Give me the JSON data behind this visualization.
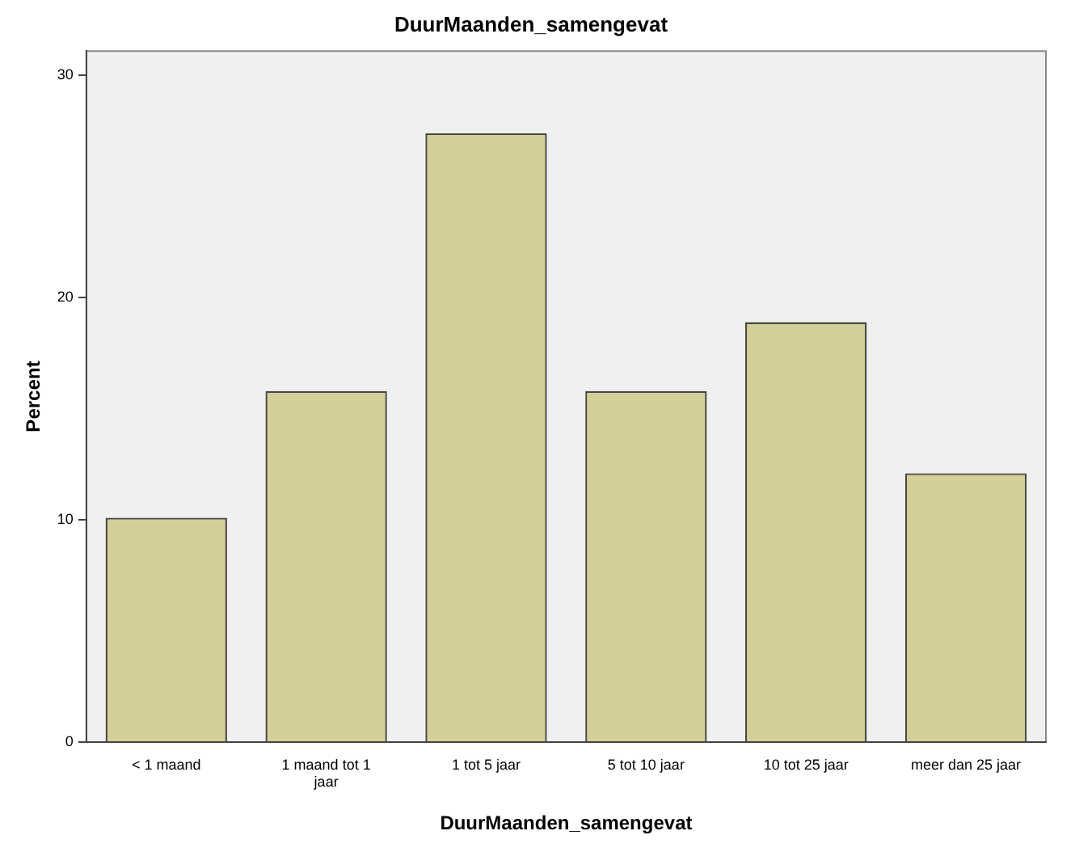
{
  "chart_data": {
    "type": "bar",
    "title": "DuurMaanden_samengevat",
    "xlabel": "DuurMaanden_samengevat",
    "ylabel": "Percent",
    "categories": [
      "< 1 maand",
      "1 maand tot 1 jaar",
      "1 tot 5 jaar",
      "5 tot 10 jaar",
      "10 tot 25 jaar",
      "meer dan 25 jaar"
    ],
    "values": [
      10.1,
      15.8,
      27.4,
      15.8,
      18.9,
      12.1
    ],
    "color": "#d3cf98",
    "ylim": [
      0,
      31.1
    ],
    "yticks": [
      0,
      10,
      20,
      30
    ],
    "grid": false,
    "legend": false
  }
}
